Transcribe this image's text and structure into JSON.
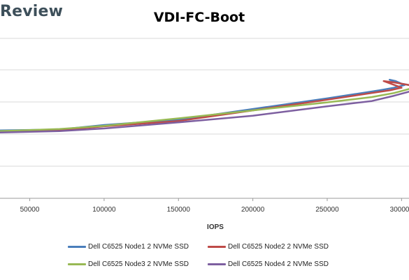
{
  "watermark": "Review",
  "chart_data": {
    "type": "line",
    "title": "VDI-FC-Boot",
    "xlabel": "IOPS",
    "ylabel": "",
    "xlim": [
      30000,
      305000
    ],
    "ylim": [
      0,
      6
    ],
    "x_ticks": [
      50000,
      100000,
      150000,
      200000,
      250000,
      300000
    ],
    "x_tick_labels": [
      "50000",
      "100000",
      "150000",
      "200000",
      "250000",
      "300000"
    ],
    "grid": true,
    "legend_position": "bottom",
    "series": [
      {
        "name": "Dell C6525 Node1 2 NVMe SSD",
        "color": "#4a7ebb",
        "points": [
          [
            30000,
            2.55
          ],
          [
            70000,
            2.58
          ],
          [
            100000,
            2.75
          ],
          [
            150000,
            2.95
          ],
          [
            200000,
            3.35
          ],
          [
            250000,
            3.75
          ],
          [
            285000,
            4.05
          ],
          [
            295000,
            4.15
          ],
          [
            302000,
            4.25
          ],
          [
            292000,
            4.45
          ],
          [
            296000,
            4.4
          ],
          [
            300000,
            4.3
          ],
          [
            305000,
            4.25
          ]
        ]
      },
      {
        "name": "Dell C6525 Node2 2 NVMe SSD",
        "color": "#be4b48",
        "points": [
          [
            30000,
            2.5
          ],
          [
            70000,
            2.55
          ],
          [
            100000,
            2.7
          ],
          [
            150000,
            2.9
          ],
          [
            200000,
            3.3
          ],
          [
            250000,
            3.7
          ],
          [
            280000,
            3.95
          ],
          [
            292000,
            4.05
          ],
          [
            300000,
            4.15
          ],
          [
            288000,
            4.4
          ],
          [
            295000,
            4.35
          ],
          [
            305000,
            4.25
          ]
        ]
      },
      {
        "name": "Dell C6525 Node3 2 NVMe SSD",
        "color": "#98b954",
        "points": [
          [
            30000,
            2.52
          ],
          [
            70000,
            2.6
          ],
          [
            100000,
            2.72
          ],
          [
            150000,
            3.0
          ],
          [
            200000,
            3.3
          ],
          [
            250000,
            3.6
          ],
          [
            280000,
            3.8
          ],
          [
            295000,
            3.95
          ],
          [
            305000,
            4.1
          ]
        ]
      },
      {
        "name": "Dell C6525 Node4 2 NVMe SSD",
        "color": "#7d5fa0",
        "points": [
          [
            30000,
            2.47
          ],
          [
            70000,
            2.52
          ],
          [
            100000,
            2.62
          ],
          [
            150000,
            2.85
          ],
          [
            200000,
            3.1
          ],
          [
            250000,
            3.45
          ],
          [
            280000,
            3.65
          ],
          [
            295000,
            3.85
          ],
          [
            305000,
            4.0
          ]
        ]
      }
    ]
  }
}
